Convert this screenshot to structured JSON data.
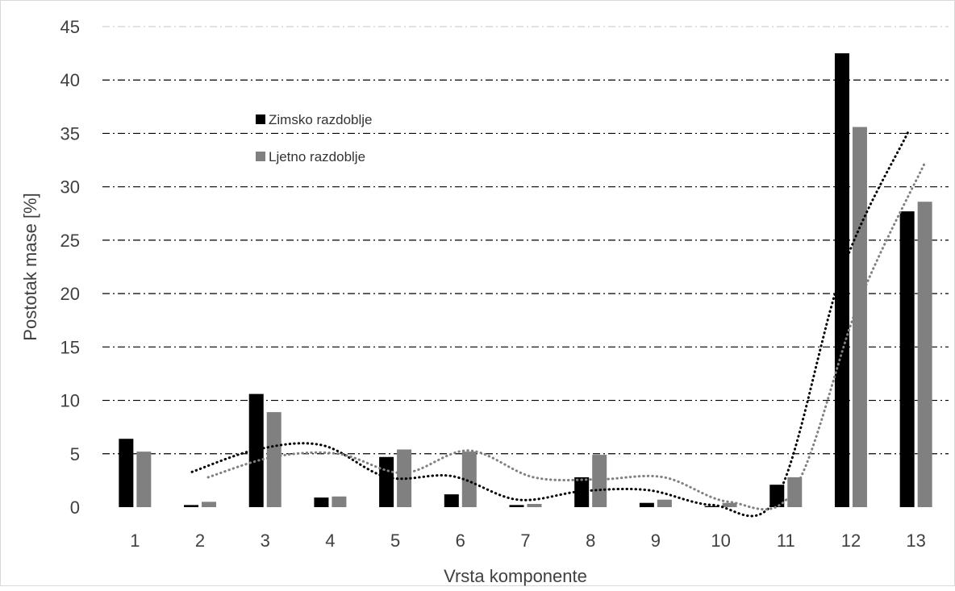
{
  "chart_data": {
    "type": "bar",
    "title": "",
    "xlabel": "Vrsta komponente",
    "ylabel": "Postotak mase [%]",
    "ylim": [
      0,
      45
    ],
    "yticks": [
      "0",
      "5",
      "10",
      "15",
      "20",
      "25",
      "30",
      "35",
      "40",
      "45"
    ],
    "categories": [
      "1",
      "2",
      "3",
      "4",
      "5",
      "6",
      "7",
      "8",
      "9",
      "10",
      "11",
      "12",
      "13"
    ],
    "grid": "horizontal dash-dot",
    "legend_position": "upper-left inside plot",
    "series": [
      {
        "name": "Zimsko razdoblje",
        "color": "#000000",
        "values": [
          6.4,
          0.2,
          10.6,
          0.9,
          4.7,
          1.2,
          0.2,
          2.8,
          0.4,
          0.1,
          2.1,
          42.5,
          27.7
        ],
        "trendline_moving_average": [
          null,
          3.3,
          5.4,
          5.8,
          2.8,
          2.9,
          0.7,
          1.5,
          1.6,
          0.2,
          1.1,
          22.3,
          35.1
        ]
      },
      {
        "name": "Ljetno razdoblje",
        "color": "#808080",
        "values": [
          5.2,
          0.5,
          8.9,
          1.0,
          5.4,
          5.2,
          0.3,
          4.9,
          0.7,
          0.4,
          2.8,
          35.6,
          28.6
        ],
        "trendline_moving_average": [
          null,
          2.8,
          4.7,
          5.0,
          3.2,
          5.3,
          2.8,
          2.6,
          2.8,
          0.5,
          1.6,
          19.2,
          32.1
        ]
      }
    ]
  }
}
